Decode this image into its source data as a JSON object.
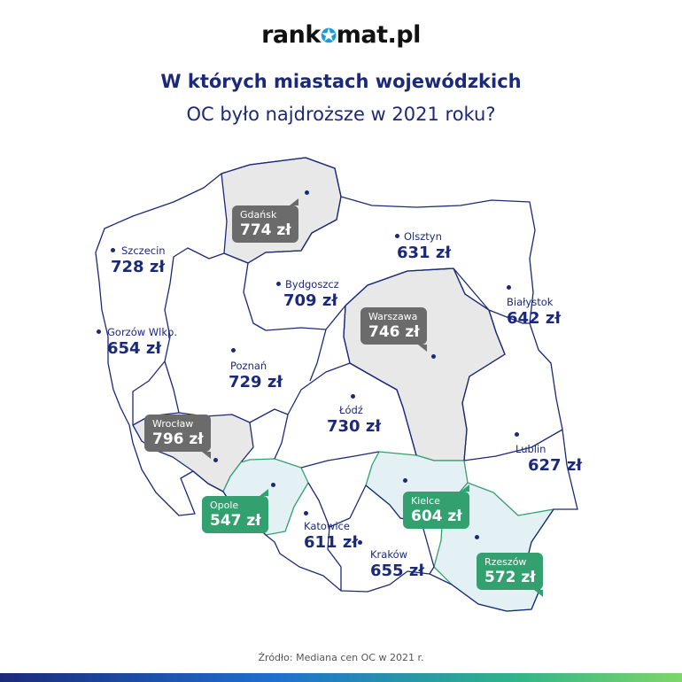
{
  "logo": {
    "text_left": "rank",
    "text_right": "mat.pl",
    "mark": "star-icon"
  },
  "title": {
    "line1": "W których miastach wojewódzkich",
    "line2": "OC było najdroższe w 2021 roku?"
  },
  "source": "Źródło: Mediana cen OC w 2021 r.",
  "colors": {
    "navy": "#1b2a78",
    "gray_region": "#e8e8e8",
    "green_region": "#e3f1f4",
    "gray_bubble": "#6b6b6b",
    "green_bubble": "#33a06f"
  },
  "cities": {
    "gdansk": {
      "name": "Gdańsk",
      "value": "774 zł",
      "style": "gray"
    },
    "olsztyn": {
      "name": "Olsztyn",
      "value": "631 zł"
    },
    "szczecin": {
      "name": "Szczecin",
      "value": "728 zł"
    },
    "bydgoszcz": {
      "name": "Bydgoszcz",
      "value": "709 zł"
    },
    "bialystok": {
      "name": "Białystok",
      "value": "642 zł"
    },
    "warszawa": {
      "name": "Warszawa",
      "value": "746 zł",
      "style": "gray"
    },
    "gorzow": {
      "name": "Gorzów Wlkp.",
      "value": "654 zł"
    },
    "poznan": {
      "name": "Poznań",
      "value": "729 zł"
    },
    "lodz": {
      "name": "Łódź",
      "value": "730 zł"
    },
    "wroclaw": {
      "name": "Wrocław",
      "value": "796 zł",
      "style": "gray"
    },
    "lublin": {
      "name": "Lublin",
      "value": "627 zł"
    },
    "opole": {
      "name": "Opole",
      "value": "547 zł",
      "style": "green"
    },
    "kielce": {
      "name": "Kielce",
      "value": "604 zł",
      "style": "green"
    },
    "katowice": {
      "name": "Katowice",
      "value": "611 zł"
    },
    "krakow": {
      "name": "Kraków",
      "value": "655 zł"
    },
    "rzeszow": {
      "name": "Rzeszów",
      "value": "572 zł",
      "style": "green"
    }
  }
}
